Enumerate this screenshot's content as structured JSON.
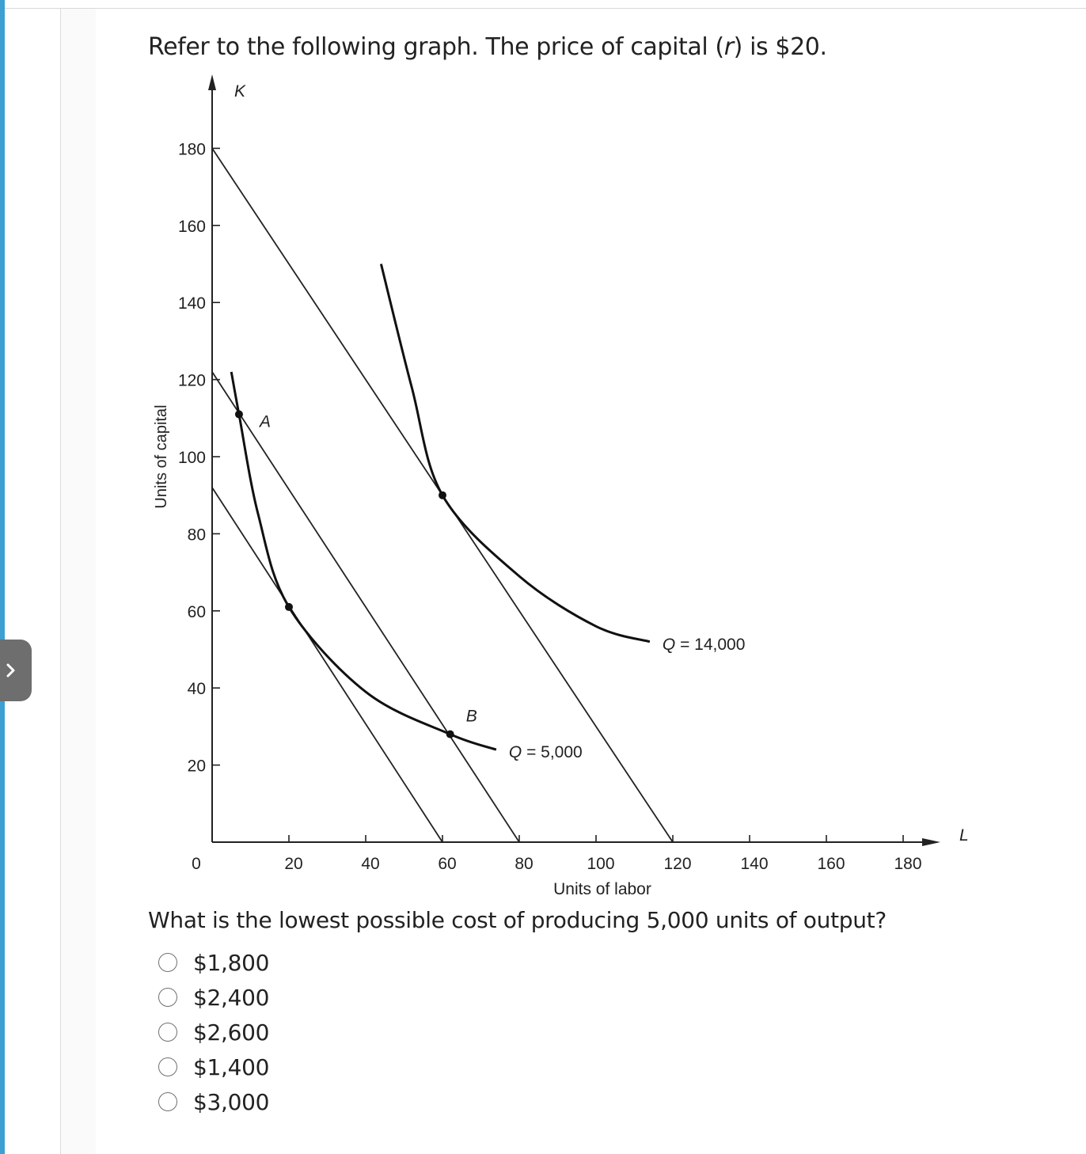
{
  "question": {
    "intro_before": "Refer to the following graph. The price of capital (",
    "intro_var": "r",
    "intro_after": ") is $20.",
    "prompt": "What is the lowest possible cost of producing 5,000 units of output?"
  },
  "options": [
    {
      "label": "$1,800"
    },
    {
      "label": "$2,400"
    },
    {
      "label": "$2,600"
    },
    {
      "label": "$1,400"
    },
    {
      "label": "$3,000"
    }
  ],
  "chart_data": {
    "type": "line",
    "x_axis_symbol": "L",
    "y_axis_symbol": "K",
    "xlabel": "Units of labor",
    "ylabel": "Units of capital",
    "origin_label": "0",
    "xlim": [
      0,
      180
    ],
    "ylim": [
      0,
      180
    ],
    "x_ticks": [
      20,
      40,
      60,
      80,
      100,
      120,
      140,
      160,
      180
    ],
    "y_ticks": [
      20,
      40,
      60,
      80,
      100,
      120,
      140,
      160,
      180
    ],
    "isocost_lines": [
      {
        "points": [
          [
            0,
            92
          ],
          [
            60,
            0
          ]
        ]
      },
      {
        "points": [
          [
            0,
            122
          ],
          [
            80,
            0
          ]
        ]
      },
      {
        "points": [
          [
            0,
            180
          ],
          [
            120,
            0
          ]
        ]
      }
    ],
    "isoquants": [
      {
        "name": "Q = 5,000",
        "label_prefix": "Q",
        "label_value": "= 5,000",
        "points": [
          [
            5,
            122
          ],
          [
            7,
            111
          ],
          [
            12,
            85
          ],
          [
            20,
            61
          ],
          [
            40,
            39
          ],
          [
            62,
            28
          ],
          [
            74,
            24
          ]
        ]
      },
      {
        "name": "Q = 14,000",
        "label_prefix": "Q",
        "label_value": "= 14,000",
        "points": [
          [
            44,
            150
          ],
          [
            52,
            118
          ],
          [
            60,
            90
          ],
          [
            80,
            69
          ],
          [
            100,
            56
          ],
          [
            114,
            52
          ]
        ]
      }
    ],
    "points": [
      {
        "x": 7,
        "y": 111,
        "label": "A"
      },
      {
        "x": 20,
        "y": 61,
        "label": ""
      },
      {
        "x": 62,
        "y": 28,
        "label": "B"
      },
      {
        "x": 60,
        "y": 90,
        "label": ""
      }
    ]
  }
}
